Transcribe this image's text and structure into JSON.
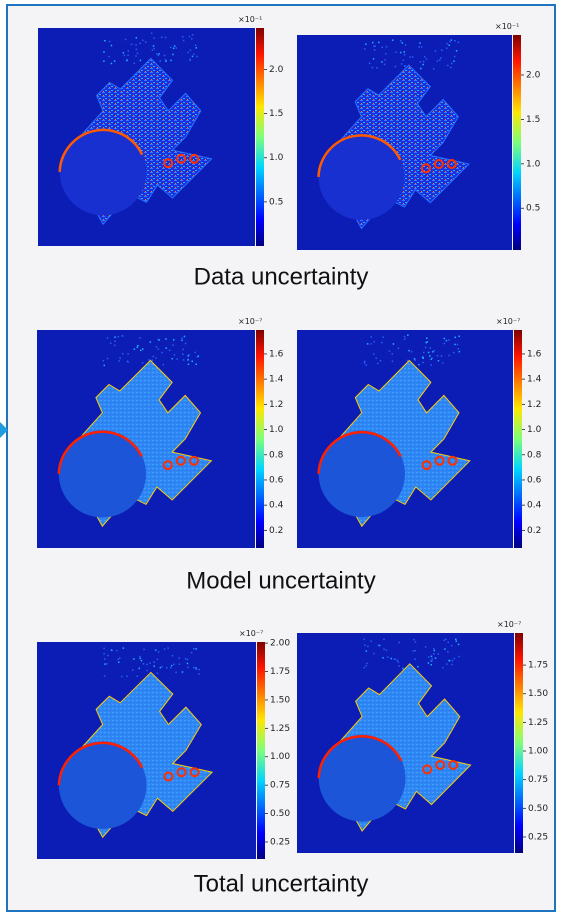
{
  "panels": [
    {
      "title": "Data uncertainty",
      "maps": [
        {
          "colorbar": {
            "exponent": "×10⁻¹",
            "min": 0,
            "max": 2.47,
            "ticks": [
              {
                "value": 0.5,
                "label": "0.5"
              },
              {
                "value": 1,
                "label": "1.0"
              },
              {
                "value": 1.5,
                "label": "1.5"
              },
              {
                "value": 2,
                "label": "2.0"
              }
            ]
          }
        },
        {
          "colorbar": {
            "exponent": "×10⁻¹",
            "min": 0.03,
            "max": 2.45,
            "ticks": [
              {
                "value": 0.5,
                "label": "0.5"
              },
              {
                "value": 1,
                "label": "1.0"
              },
              {
                "value": 1.5,
                "label": "1.5"
              },
              {
                "value": 2,
                "label": "2.0"
              }
            ]
          }
        }
      ]
    },
    {
      "title": "Model uncertainty",
      "maps": [
        {
          "colorbar": {
            "exponent": "×10⁻⁷",
            "min": 0.06,
            "max": 1.79,
            "ticks": [
              0.2,
              0.4,
              0.6,
              0.8,
              {
                "value": 1,
                "label": "1.0"
              },
              1.2,
              1.4,
              1.6
            ]
          }
        },
        {
          "colorbar": {
            "exponent": "×10⁻⁷",
            "min": 0.06,
            "max": 1.79,
            "ticks": [
              0.2,
              0.4,
              0.6,
              0.8,
              {
                "value": 1,
                "label": "1.0"
              },
              1.2,
              1.4,
              1.6
            ]
          }
        }
      ]
    },
    {
      "title": "Total uncertainty",
      "maps": [
        {
          "colorbar": {
            "exponent": "×10⁻⁷",
            "min": 0.1,
            "max": 2.01,
            "ticks": [
              0.25,
              {
                "value": 0.5,
                "label": "0.50"
              },
              0.75,
              {
                "value": 1,
                "label": "1.00"
              },
              1.25,
              {
                "value": 1.5,
                "label": "1.50"
              },
              1.75,
              {
                "value": 2,
                "label": "2.00"
              }
            ]
          }
        },
        {
          "colorbar": {
            "exponent": "×10⁻⁷",
            "min": 0.11,
            "max": 2.03,
            "ticks": [
              0.25,
              {
                "value": 0.5,
                "label": "0.50"
              },
              0.75,
              {
                "value": 1,
                "label": "1.00"
              },
              1.25,
              {
                "value": 1.5,
                "label": "1.50"
              },
              1.75
            ]
          }
        }
      ]
    }
  ]
}
